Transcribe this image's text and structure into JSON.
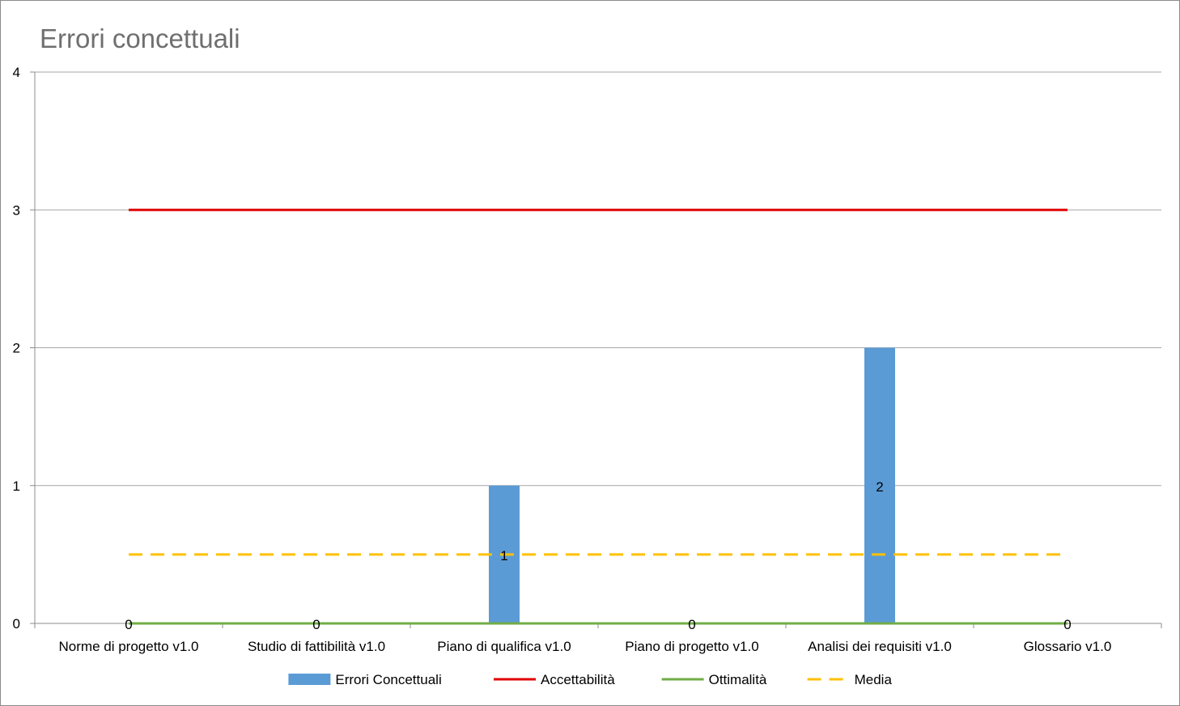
{
  "chart_data": {
    "type": "bar",
    "title": "Errori concettuali",
    "xlabel": "",
    "ylabel": "",
    "ylim": [
      0,
      4
    ],
    "yticks": [
      "0",
      "1",
      "2",
      "3",
      "4"
    ],
    "grid": true,
    "legend_position": "bottom",
    "categories": [
      "Norme di progetto v1.0",
      "Studio di fattibilità v1.0",
      "Piano di qualifica v1.0",
      "Piano di progetto v1.0",
      "Analisi dei requisiti v1.0",
      "Glossario v1.0"
    ],
    "series": [
      {
        "name": "Errori Concettuali",
        "kind": "bar",
        "color": "#5b9bd5",
        "values": [
          0,
          0,
          1,
          0,
          2,
          0
        ],
        "data_labels": [
          "0",
          "0",
          "1",
          "0",
          "2",
          "0"
        ]
      },
      {
        "name": "Accettabilità",
        "kind": "line",
        "color": "#e00000",
        "dash": "solid",
        "values": [
          3,
          3,
          3,
          3,
          3,
          3
        ]
      },
      {
        "name": "Ottimalità",
        "kind": "line",
        "color": "#70ad47",
        "dash": "solid",
        "values": [
          0,
          0,
          0,
          0,
          0,
          0
        ]
      },
      {
        "name": "Media",
        "kind": "line",
        "color": "#ffc000",
        "dash": "dashed",
        "values": [
          0.5,
          0.5,
          0.5,
          0.5,
          0.5,
          0.5
        ]
      }
    ]
  }
}
